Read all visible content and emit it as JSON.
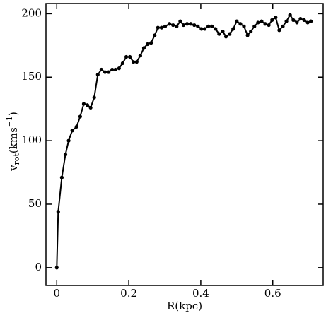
{
  "chart_data": {
    "type": "line",
    "color": "#000000",
    "x_label": "R(kpc)",
    "y_label": {
      "base": "v",
      "subscript": "rot",
      "unit": "(kms",
      "superscript": "−1",
      "close": ")"
    },
    "x": [
      0,
      0.004,
      0.014,
      0.024,
      0.033,
      0.043,
      0.055,
      0.065,
      0.075,
      0.085,
      0.094,
      0.104,
      0.114,
      0.124,
      0.134,
      0.144,
      0.154,
      0.163,
      0.173,
      0.183,
      0.193,
      0.203,
      0.213,
      0.222,
      0.232,
      0.242,
      0.252,
      0.262,
      0.272,
      0.281,
      0.291,
      0.301,
      0.313,
      0.323,
      0.333,
      0.343,
      0.352,
      0.362,
      0.372,
      0.382,
      0.392,
      0.402,
      0.411,
      0.421,
      0.431,
      0.441,
      0.451,
      0.461,
      0.47,
      0.48,
      0.49,
      0.5,
      0.51,
      0.52,
      0.53,
      0.539,
      0.549,
      0.559,
      0.569,
      0.579,
      0.589,
      0.598,
      0.608,
      0.618,
      0.628,
      0.638,
      0.648,
      0.657,
      0.667,
      0.677,
      0.687,
      0.697,
      0.706
    ],
    "values": [
      0,
      44,
      71,
      89,
      100,
      108,
      111,
      119,
      129,
      128,
      126,
      134,
      152,
      156,
      154,
      154,
      156,
      156,
      157,
      161,
      166,
      166,
      162,
      162,
      167,
      173,
      176,
      177,
      183,
      189,
      189,
      190,
      192,
      191,
      190,
      194,
      191,
      192,
      192,
      191,
      190,
      188,
      188,
      190,
      190,
      188,
      184,
      186,
      182,
      184,
      188,
      194,
      192,
      190,
      183,
      186,
      190,
      193,
      194,
      192,
      191,
      195,
      197,
      187,
      190,
      194,
      199,
      195,
      193,
      196,
      195,
      193,
      194
    ],
    "xlim": [
      -0.03,
      0.74
    ],
    "ylim": [
      -14,
      208
    ],
    "xticks": [
      0,
      0.2,
      0.4,
      0.6
    ],
    "yticks": [
      0,
      50,
      100,
      150,
      200
    ]
  }
}
